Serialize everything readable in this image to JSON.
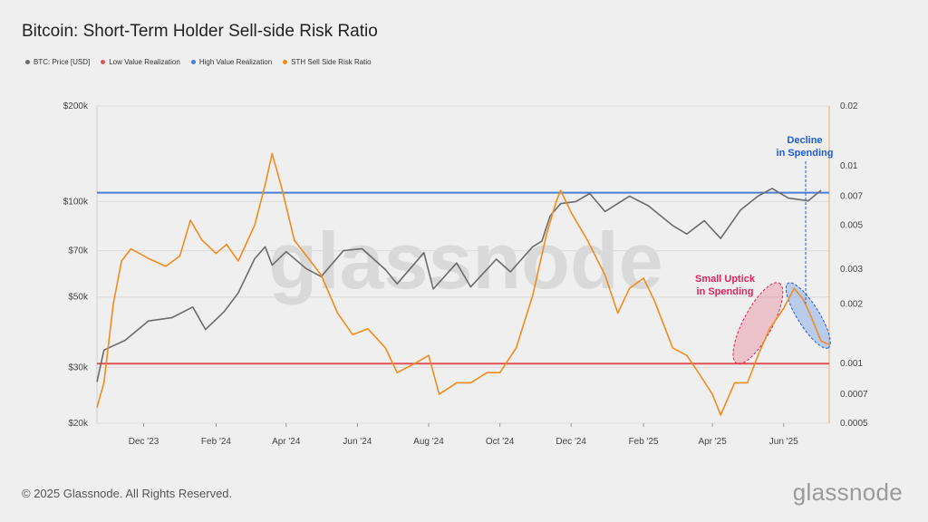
{
  "title": "Bitcoin: Short-Term Holder Sell-side Risk Ratio",
  "legend": [
    {
      "label": "BTC: Price [USD]",
      "color": "#6b6b6b"
    },
    {
      "label": "Low Value Realization",
      "color": "#e05252"
    },
    {
      "label": "High Value Realization",
      "color": "#4a7fd6"
    },
    {
      "label": "STH Sell Side Risk Ratio",
      "color": "#f08c1e"
    }
  ],
  "footer": "© 2025 Glassnode. All Rights Reserved.",
  "brand": "glassnode",
  "watermark": "glassnode",
  "chart_data": {
    "type": "line",
    "title": "Bitcoin: Short-Term Holder Sell-side Risk Ratio",
    "x_range": [
      "2023-10-22",
      "2025-07-10"
    ],
    "x_ticks": [
      "Dec '23",
      "Feb '24",
      "Apr '24",
      "Jun '24",
      "Aug '24",
      "Oct '24",
      "Dec '24",
      "Feb '25",
      "Apr '25",
      "Jun '25"
    ],
    "y_left": {
      "scale": "log",
      "range": [
        20000,
        200000
      ],
      "tick_values": [
        20000,
        30000,
        50000,
        70000,
        100000,
        200000
      ],
      "tick_labels": [
        "$20k",
        "$30k",
        "$50k",
        "$70k",
        "$100k",
        "$200k"
      ]
    },
    "y_right": {
      "scale": "log",
      "range": [
        0.0005,
        0.02
      ],
      "tick_values": [
        0.0005,
        0.0007,
        0.001,
        0.002,
        0.003,
        0.005,
        0.007,
        0.01,
        0.02
      ],
      "tick_labels": [
        "0.0005",
        "0.0007",
        "0.001",
        "0.002",
        "0.003",
        "0.005",
        "0.007",
        "0.01",
        "0.02"
      ]
    },
    "grid": "horizontal",
    "series": [
      {
        "name": "BTC: Price [USD]",
        "axis": "left",
        "color": "#6b6b6b",
        "points": [
          [
            "2023-10-22",
            27000
          ],
          [
            "2023-10-28",
            34000
          ],
          [
            "2023-11-15",
            36500
          ],
          [
            "2023-12-05",
            42000
          ],
          [
            "2023-12-25",
            43000
          ],
          [
            "2024-01-12",
            46500
          ],
          [
            "2024-01-23",
            39500
          ],
          [
            "2024-02-08",
            45000
          ],
          [
            "2024-02-20",
            51500
          ],
          [
            "2024-03-05",
            66000
          ],
          [
            "2024-03-14",
            72000
          ],
          [
            "2024-03-20",
            63000
          ],
          [
            "2024-04-01",
            69500
          ],
          [
            "2024-04-18",
            61500
          ],
          [
            "2024-05-01",
            58000
          ],
          [
            "2024-05-20",
            70000
          ],
          [
            "2024-06-05",
            71000
          ],
          [
            "2024-06-25",
            61000
          ],
          [
            "2024-07-05",
            55000
          ],
          [
            "2024-07-28",
            69000
          ],
          [
            "2024-08-05",
            53000
          ],
          [
            "2024-08-25",
            64000
          ],
          [
            "2024-09-06",
            53800
          ],
          [
            "2024-09-28",
            65800
          ],
          [
            "2024-10-10",
            60000
          ],
          [
            "2024-10-29",
            72000
          ],
          [
            "2024-11-06",
            75000
          ],
          [
            "2024-11-13",
            90000
          ],
          [
            "2024-11-22",
            98500
          ],
          [
            "2024-12-05",
            100000
          ],
          [
            "2024-12-17",
            106000
          ],
          [
            "2024-12-30",
            93000
          ],
          [
            "2025-01-20",
            104000
          ],
          [
            "2025-02-05",
            97000
          ],
          [
            "2025-02-26",
            84000
          ],
          [
            "2025-03-10",
            79000
          ],
          [
            "2025-03-25",
            87000
          ],
          [
            "2025-04-08",
            76500
          ],
          [
            "2025-04-25",
            94000
          ],
          [
            "2025-05-10",
            104000
          ],
          [
            "2025-05-22",
            110000
          ],
          [
            "2025-06-05",
            102500
          ],
          [
            "2025-06-22",
            100500
          ],
          [
            "2025-07-03",
            108500
          ]
        ]
      },
      {
        "name": "STH Sell Side Risk Ratio",
        "axis": "right",
        "color": "#f08c1e",
        "points": [
          [
            "2023-10-22",
            0.0006
          ],
          [
            "2023-10-28",
            0.0008
          ],
          [
            "2023-11-05",
            0.002
          ],
          [
            "2023-11-12",
            0.0033
          ],
          [
            "2023-11-20",
            0.0038
          ],
          [
            "2023-12-05",
            0.0034
          ],
          [
            "2023-12-20",
            0.0031
          ],
          [
            "2024-01-01",
            0.0035
          ],
          [
            "2024-01-10",
            0.0053
          ],
          [
            "2024-01-20",
            0.0042
          ],
          [
            "2024-02-01",
            0.0036
          ],
          [
            "2024-02-10",
            0.004
          ],
          [
            "2024-02-20",
            0.0033
          ],
          [
            "2024-03-05",
            0.005
          ],
          [
            "2024-03-14",
            0.008
          ],
          [
            "2024-03-20",
            0.0115
          ],
          [
            "2024-03-28",
            0.0078
          ],
          [
            "2024-04-08",
            0.0042
          ],
          [
            "2024-04-20",
            0.0034
          ],
          [
            "2024-05-01",
            0.0028
          ],
          [
            "2024-05-15",
            0.0018
          ],
          [
            "2024-05-28",
            0.0014
          ],
          [
            "2024-06-10",
            0.0015
          ],
          [
            "2024-06-25",
            0.0012
          ],
          [
            "2024-07-05",
            0.0009
          ],
          [
            "2024-07-20",
            0.001
          ],
          [
            "2024-08-01",
            0.0011
          ],
          [
            "2024-08-10",
            0.0007
          ],
          [
            "2024-08-25",
            0.0008
          ],
          [
            "2024-09-06",
            0.0008
          ],
          [
            "2024-09-20",
            0.0009
          ],
          [
            "2024-10-01",
            0.0009
          ],
          [
            "2024-10-15",
            0.0012
          ],
          [
            "2024-10-29",
            0.0022
          ],
          [
            "2024-11-10",
            0.0045
          ],
          [
            "2024-11-18",
            0.0065
          ],
          [
            "2024-11-22",
            0.0075
          ],
          [
            "2024-12-01",
            0.0058
          ],
          [
            "2024-12-15",
            0.0042
          ],
          [
            "2024-12-30",
            0.0028
          ],
          [
            "2025-01-10",
            0.0018
          ],
          [
            "2025-01-20",
            0.0024
          ],
          [
            "2025-02-01",
            0.0027
          ],
          [
            "2025-02-10",
            0.0021
          ],
          [
            "2025-02-26",
            0.0012
          ],
          [
            "2025-03-10",
            0.0011
          ],
          [
            "2025-03-20",
            0.0009
          ],
          [
            "2025-04-01",
            0.0007
          ],
          [
            "2025-04-08",
            0.00055
          ],
          [
            "2025-04-20",
            0.0008
          ],
          [
            "2025-05-01",
            0.0008
          ],
          [
            "2025-05-10",
            0.0011
          ],
          [
            "2025-05-20",
            0.0015
          ],
          [
            "2025-06-01",
            0.0019
          ],
          [
            "2025-06-10",
            0.0024
          ],
          [
            "2025-06-18",
            0.0021
          ],
          [
            "2025-06-25",
            0.0017
          ],
          [
            "2025-07-03",
            0.0013
          ],
          [
            "2025-07-10",
            0.00125
          ]
        ]
      }
    ],
    "reference_lines": [
      {
        "name": "High Value Realization",
        "axis": "right",
        "value": 0.0073,
        "color": "#4a7fd6"
      },
      {
        "name": "Low Value Realization",
        "axis": "right",
        "value": 0.001,
        "color": "#e05252"
      }
    ],
    "annotations": [
      {
        "text_lines": [
          "Small Uptick",
          "in Spending"
        ],
        "color": "#e0245e"
      },
      {
        "text_lines": [
          "Decline",
          "in Spending"
        ],
        "color": "#1d5ed8"
      }
    ]
  }
}
